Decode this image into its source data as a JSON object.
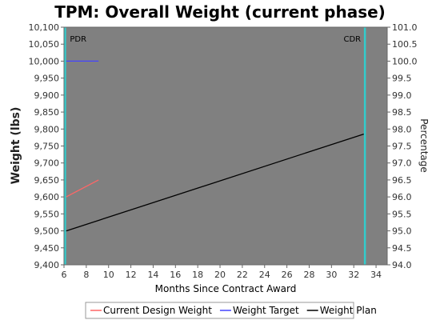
{
  "chart_data": {
    "type": "line",
    "title": "TPM: Overall Weight (current phase)",
    "xlabel": "Months Since Contract Award",
    "ylabel": "Weight (lbs)",
    "y2label": "Percentage",
    "xlim": [
      6,
      35
    ],
    "ylim": [
      9400,
      10100
    ],
    "y2lim": [
      94.0,
      101.0
    ],
    "x_ticks": [
      "6",
      "8",
      "10",
      "12",
      "14",
      "16",
      "18",
      "20",
      "22",
      "24",
      "26",
      "28",
      "30",
      "32",
      "34"
    ],
    "y_ticks": [
      "9,400",
      "9,450",
      "9,500",
      "9,550",
      "9,600",
      "9,650",
      "9,700",
      "9,750",
      "9,800",
      "9,850",
      "9,900",
      "9,950",
      "10,000",
      "10,050",
      "10,100"
    ],
    "y2_ticks": [
      "94.0",
      "94.5",
      "95.0",
      "95.5",
      "96.0",
      "96.5",
      "97.0",
      "97.5",
      "98.0",
      "98.5",
      "99.0",
      "99.5",
      "100.0",
      "100.5",
      "101.0"
    ],
    "grid": false,
    "legend_position": "bottom",
    "plot_background": "#808080",
    "series": [
      {
        "name": "Current Design Weight",
        "color": "#ff6666",
        "x": [
          6.2,
          9.1
        ],
        "y": [
          9600,
          9650
        ]
      },
      {
        "name": "Weight Target",
        "color": "#4444ff",
        "x": [
          6.2,
          9.1
        ],
        "y": [
          10000,
          10000
        ]
      },
      {
        "name": "Weight Plan",
        "color": "#000000",
        "x": [
          6.2,
          32.9
        ],
        "y": [
          9500,
          9785
        ]
      }
    ],
    "milestones": [
      {
        "label": "PDR",
        "x": 6.1,
        "color": "#33cccc"
      },
      {
        "label": "CDR",
        "x": 33.0,
        "color": "#33cccc"
      }
    ]
  }
}
